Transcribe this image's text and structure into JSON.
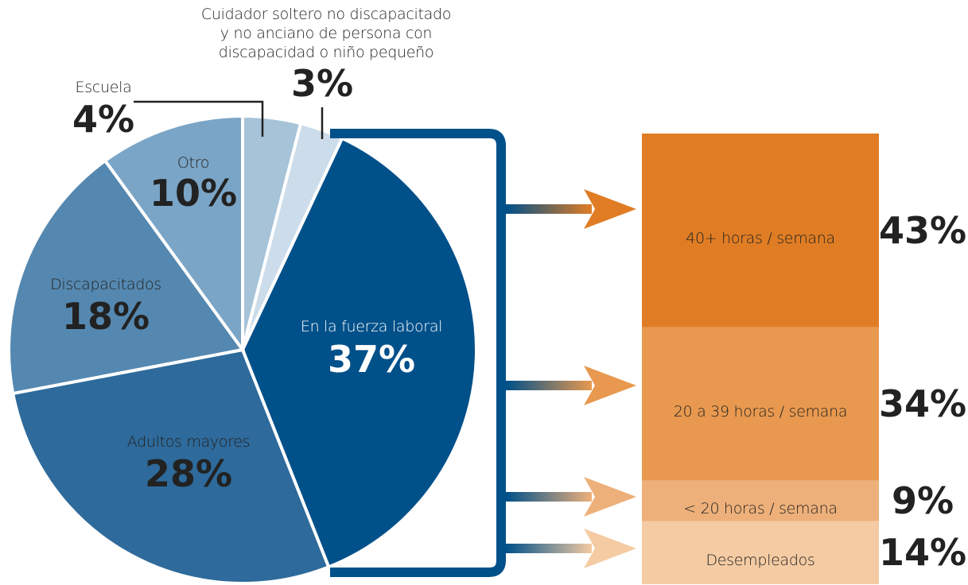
{
  "chart_data": [
    {
      "type": "pie",
      "categories": [
        "Escuela",
        "Cuidador soltero no discapacitado\ny no anciano de persona con\ndiscapacidad o niño pequeño",
        "En la fuerza laboral",
        "Adultos mayores",
        "Discapacitados",
        "Otro"
      ],
      "values": [
        4,
        3,
        37,
        28,
        18,
        10
      ],
      "value_labels": [
        "4%",
        "3%",
        "37%",
        "28%",
        "18%",
        "10%"
      ],
      "colors": [
        "#a6c3d8",
        "#cddcea",
        "#00508a",
        "#2e6a9b",
        "#5588b0",
        "#7aa5c7"
      ]
    },
    {
      "type": "stacked-bar",
      "categories": [
        "40+ horas / semana",
        "20 a 39 horas / semana",
        "< 20 horas / semana",
        "Desempleados"
      ],
      "values": [
        43,
        34,
        9,
        14
      ],
      "value_labels": [
        "43%",
        "34%",
        "9%",
        "14%"
      ],
      "colors": [
        "#e07d24",
        "#e8994f",
        "#eeb07a",
        "#f4cba3"
      ]
    }
  ]
}
